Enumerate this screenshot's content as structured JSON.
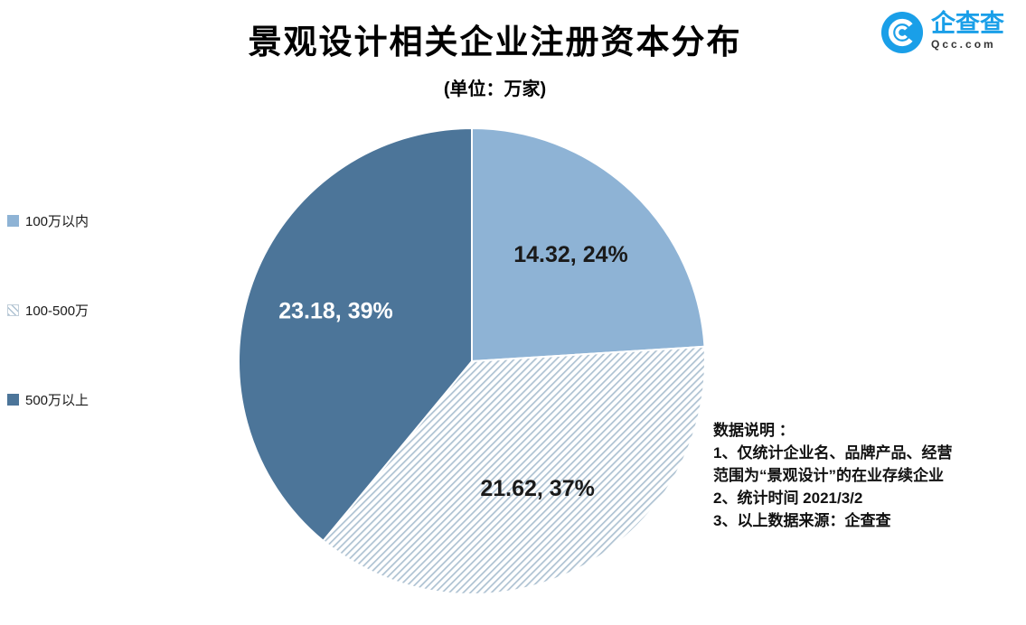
{
  "header": {
    "title": "景观设计相关企业注册资本分布",
    "subtitle": "(单位：万家)"
  },
  "logo": {
    "brand": "企查查",
    "domain": "Qcc.com",
    "brand_color": "#1A9FE8"
  },
  "chart_data": {
    "type": "pie",
    "title": "景观设计相关企业注册资本分布",
    "unit": "万家",
    "legend_position": "left",
    "start_angle_deg": 0,
    "direction": "clockwise",
    "categories": [
      "100万以内",
      "100-500万",
      "500万以上"
    ],
    "values": [
      14.32,
      21.62,
      23.18
    ],
    "slices": [
      {
        "label": "100万以内",
        "value": "14.32",
        "pct": 24,
        "fill": "#8EB3D5",
        "pattern": "solid",
        "label_color": "#1a1a1a"
      },
      {
        "label": "100-500万",
        "value": "21.62",
        "pct": 37,
        "fill": "#ffffff",
        "pattern": "hatch",
        "hatch_color": "#AEC2D2",
        "label_color": "#1a1a1a"
      },
      {
        "label": "500万以上",
        "value": "23.18",
        "pct": 39,
        "fill": "#4C7599",
        "pattern": "solid",
        "label_color": "#ffffff"
      }
    ]
  },
  "notes": {
    "heading": "数据说明 ：",
    "lines": [
      "1、仅统计企业名、品牌产品、经营",
      "范围为“景观设计”的在业存续企业",
      "2、统计时间  2021/3/2",
      "3、以上数据来源：企查查"
    ]
  }
}
